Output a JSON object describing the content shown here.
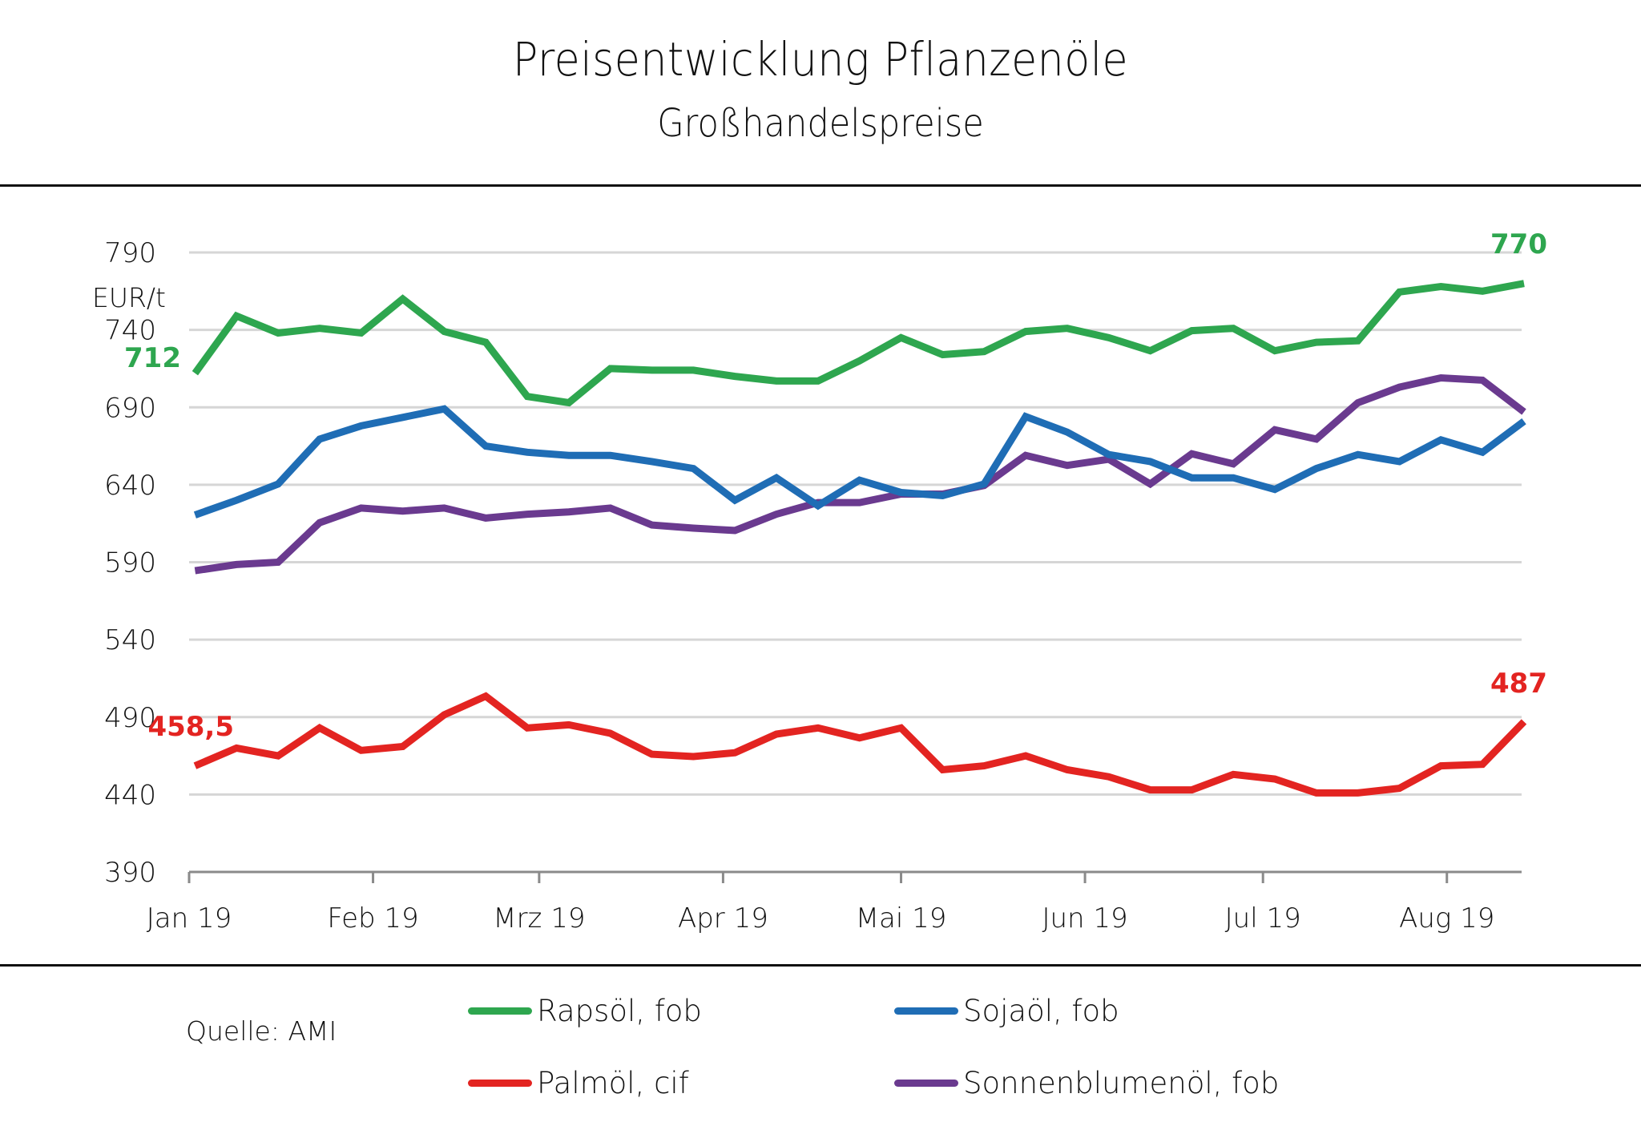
{
  "chart_data": {
    "type": "line",
    "title": "Preisentwicklung Pflanzenöle",
    "subtitle": "Großhandelspreise",
    "ylabel": "EUR/t",
    "xlabel": "",
    "ylim": [
      390,
      790
    ],
    "yticks": [
      390,
      440,
      490,
      540,
      590,
      640,
      690,
      740,
      790
    ],
    "xlim_day_of_year": [
      0,
      225
    ],
    "xticks": [
      {
        "label": "Jan 19",
        "day": 0
      },
      {
        "label": "Feb 19",
        "day": 31
      },
      {
        "label": "Mrz 19",
        "day": 59
      },
      {
        "label": "Apr 19",
        "day": 90
      },
      {
        "label": "Mai 19",
        "day": 120
      },
      {
        "label": "Jun 19",
        "day": 151
      },
      {
        "label": "Jul 19",
        "day": 181
      },
      {
        "label": "Aug 19",
        "day": 212
      }
    ],
    "x_days": [
      1,
      8,
      15,
      22,
      29,
      36,
      43,
      50,
      57,
      64,
      71,
      78,
      85,
      92,
      99,
      106,
      113,
      120,
      127,
      134,
      141,
      148,
      155,
      162,
      169,
      176,
      183,
      190,
      197,
      204,
      211,
      218,
      225
    ],
    "grid": true,
    "legend_position": "bottom",
    "series": [
      {
        "name": "Rapsöl, fob",
        "color": "#2ea64f",
        "values": [
          712,
          749,
          738,
          741,
          738,
          760,
          739,
          732,
          697,
          693,
          715,
          714,
          714,
          710,
          707,
          707,
          720,
          735,
          724,
          726,
          739,
          741,
          735,
          726.5,
          739.5,
          741,
          726.5,
          732,
          733,
          764.5,
          768,
          765,
          770
        ],
        "start_label": "712",
        "end_label": "770"
      },
      {
        "name": "Sojaöl, fob",
        "color": "#1f6db5",
        "values": [
          620.5,
          630,
          640.5,
          669.5,
          678,
          683.5,
          689,
          665,
          661,
          659,
          659,
          655,
          650.5,
          630,
          644.5,
          626.5,
          643,
          635,
          633,
          640.5,
          684,
          674,
          659.5,
          655,
          644.5,
          644.5,
          637,
          650.5,
          659.5,
          655,
          669,
          661,
          681
        ]
      },
      {
        "name": "Palmöl, cif",
        "color": "#e32421",
        "values": [
          458.5,
          470,
          465,
          483,
          468.5,
          471,
          491.5,
          503.5,
          483,
          485,
          479.5,
          466,
          464.5,
          467,
          479,
          483,
          476.5,
          483,
          456,
          458.5,
          465,
          456,
          451.5,
          443,
          443,
          453,
          450,
          441,
          441,
          444,
          458.5,
          459.5,
          487
        ],
        "start_label": "458,5",
        "end_label": "487"
      },
      {
        "name": "Sonnenblumenöl, fob",
        "color": "#6a3a8f",
        "values": [
          584.5,
          588.5,
          590,
          615.5,
          625,
          623,
          625,
          618.5,
          621,
          622.5,
          625,
          614,
          612,
          610.5,
          621,
          628.5,
          628.5,
          634,
          634,
          639.5,
          659,
          652.5,
          656.5,
          640.5,
          660,
          653.5,
          675.5,
          669.5,
          693,
          703,
          709,
          707.5,
          687
        ]
      }
    ]
  },
  "footer": {
    "source": "Quelle: AMI"
  }
}
